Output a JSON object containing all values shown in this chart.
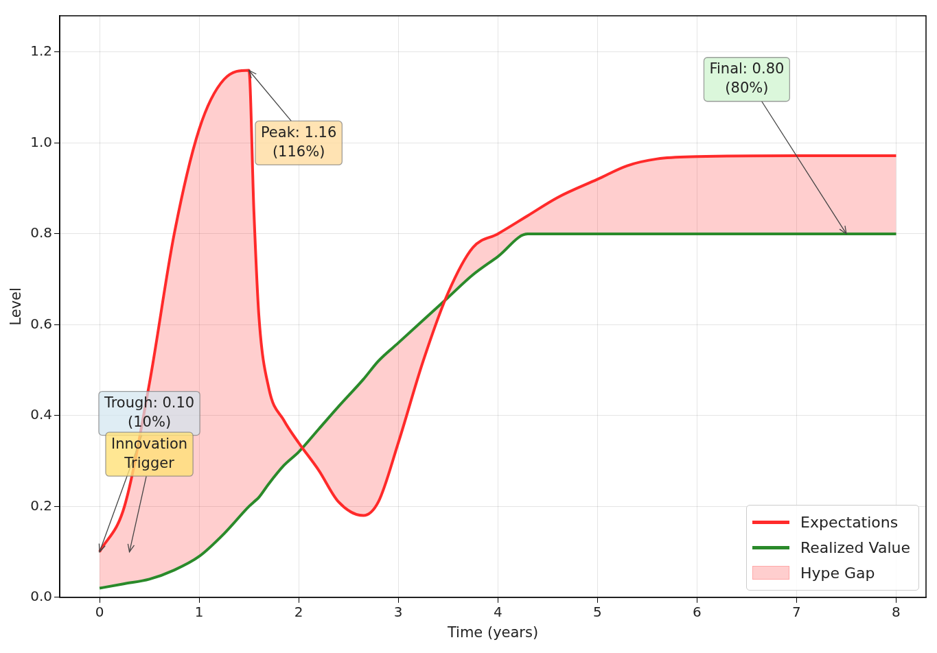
{
  "chart_data": {
    "type": "line",
    "xlabel": "Time (years)",
    "ylabel": "Level",
    "x": [
      0,
      0.25,
      0.5,
      0.75,
      1,
      1.25,
      1.5,
      1.55,
      1.6,
      1.7,
      1.85,
      2,
      2.2,
      2.4,
      2.65,
      2.8,
      3,
      3.25,
      3.5,
      3.75,
      4,
      4.3,
      4.6,
      5,
      5.3,
      5.6,
      6,
      7,
      8
    ],
    "series": [
      {
        "name": "Expectations",
        "color": "#ff2a2a",
        "values": [
          0.1,
          0.2,
          0.47,
          0.8,
          1.03,
          1.14,
          1.16,
          0.85,
          0.62,
          0.46,
          0.39,
          0.34,
          0.28,
          0.21,
          0.18,
          0.21,
          0.34,
          0.52,
          0.67,
          0.77,
          0.8,
          0.84,
          0.88,
          0.92,
          0.95,
          0.965,
          0.97,
          0.972,
          0.972
        ],
        "lower": [
          0.02,
          0.03,
          0.04,
          0.06,
          0.09,
          0.14,
          0.2,
          0.21,
          0.22,
          0.25,
          0.29,
          0.32,
          0.37,
          0.42,
          0.48,
          0.52,
          0.56,
          0.61,
          0.66,
          0.71,
          0.75,
          0.8,
          0.8,
          0.8,
          0.8,
          0.8,
          0.8,
          0.8,
          0.8
        ],
        "upper": [
          0.1,
          0.2,
          0.47,
          0.8,
          1.03,
          1.14,
          1.16,
          0.85,
          0.62,
          0.46,
          0.39,
          0.34,
          0.28,
          0.21,
          0.18,
          0.21,
          0.34,
          0.52,
          0.67,
          0.77,
          0.8,
          0.84,
          0.88,
          0.92,
          0.95,
          0.965,
          0.97,
          0.972,
          0.972
        ]
      },
      {
        "name": "Realized Value",
        "color": "#2a8a2a",
        "values": [
          0.02,
          0.03,
          0.04,
          0.06,
          0.09,
          0.14,
          0.2,
          0.21,
          0.22,
          0.25,
          0.29,
          0.32,
          0.37,
          0.42,
          0.48,
          0.52,
          0.56,
          0.61,
          0.66,
          0.71,
          0.75,
          0.8,
          0.8,
          0.8,
          0.8,
          0.8,
          0.8,
          0.8,
          0.8
        ]
      }
    ],
    "xlim": [
      -0.4,
      8.3
    ],
    "ylim": [
      0,
      1.28
    ],
    "xticks": [
      0,
      1,
      2,
      3,
      4,
      5,
      6,
      7,
      8
    ],
    "yticks": [
      {
        "value": 0,
        "label": "0.0"
      },
      {
        "value": 0.2,
        "label": "0.2"
      },
      {
        "value": 0.4,
        "label": "0.4"
      },
      {
        "value": 0.6,
        "label": "0.6"
      },
      {
        "value": 0.8,
        "label": "0.8"
      },
      {
        "value": 1,
        "label": "1.0"
      },
      {
        "value": 1.2,
        "label": "1.2"
      }
    ],
    "grid": true,
    "legend": "bottom right",
    "line_style": "solid",
    "marker": "none",
    "annotations": [
      {
        "text": "Peak: 1.16\n(116%)",
        "x": 1.5,
        "y": 1.16
      },
      {
        "text": "Trough: 0.10\n(10%)",
        "x": 0,
        "y": 0.1
      },
      "Innovation\nTrigger",
      {
        "text": "Final: 0.80\n(80%)",
        "x": 7.5,
        "y": 0.8
      },
      "Hype Gap"
    ]
  }
}
